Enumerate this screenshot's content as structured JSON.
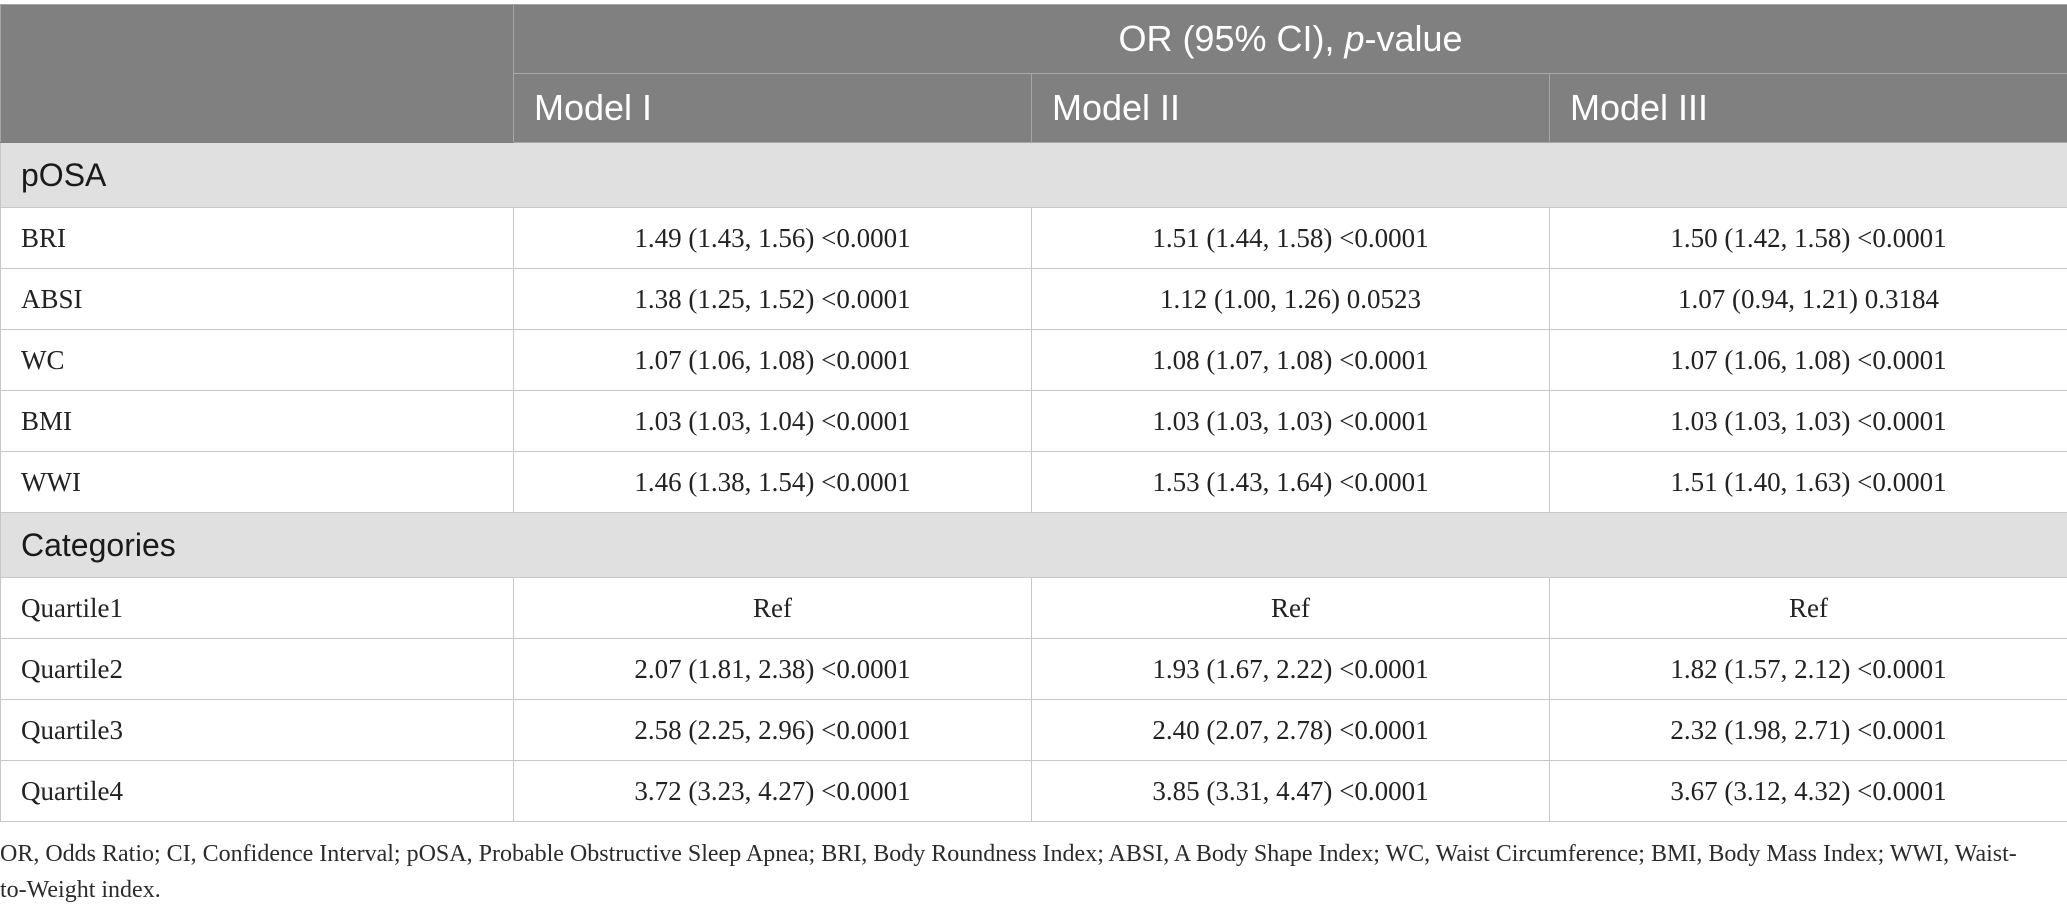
{
  "header": {
    "group_label_pre": "OR (95% CI), ",
    "group_label_italic": "p",
    "group_label_post": "-value",
    "models": [
      "Model I",
      "Model II",
      "Model III"
    ]
  },
  "sections": [
    {
      "title": "pOSA",
      "rows": [
        {
          "label": "BRI",
          "values": [
            "1.49 (1.43, 1.56) <0.0001",
            "1.51 (1.44, 1.58) <0.0001",
            "1.50 (1.42, 1.58) <0.0001"
          ]
        },
        {
          "label": "ABSI",
          "values": [
            "1.38 (1.25, 1.52) <0.0001",
            "1.12 (1.00, 1.26) 0.0523",
            "1.07 (0.94, 1.21) 0.3184"
          ]
        },
        {
          "label": "WC",
          "values": [
            "1.07 (1.06, 1.08) <0.0001",
            "1.08 (1.07, 1.08) <0.0001",
            "1.07 (1.06, 1.08) <0.0001"
          ]
        },
        {
          "label": "BMI",
          "values": [
            "1.03 (1.03, 1.04) <0.0001",
            "1.03 (1.03, 1.03) <0.0001",
            "1.03 (1.03, 1.03) <0.0001"
          ]
        },
        {
          "label": "WWI",
          "values": [
            "1.46 (1.38, 1.54) <0.0001",
            "1.53 (1.43, 1.64) <0.0001",
            "1.51 (1.40, 1.63) <0.0001"
          ]
        }
      ]
    },
    {
      "title": "Categories",
      "rows": [
        {
          "label": "Quartile1",
          "values": [
            "Ref",
            "Ref",
            "Ref"
          ]
        },
        {
          "label": "Quartile2",
          "values": [
            "2.07 (1.81, 2.38) <0.0001",
            "1.93 (1.67, 2.22) <0.0001",
            "1.82 (1.57, 2.12) <0.0001"
          ]
        },
        {
          "label": "Quartile3",
          "values": [
            "2.58 (2.25, 2.96) <0.0001",
            "2.40 (2.07, 2.78) <0.0001",
            "2.32 (1.98, 2.71) <0.0001"
          ]
        },
        {
          "label": "Quartile4",
          "values": [
            "3.72 (3.23, 4.27) <0.0001",
            "3.85 (3.31, 4.47) <0.0001",
            "3.67 (3.12, 4.32) <0.0001"
          ]
        }
      ]
    }
  ],
  "footnote": "OR, Odds Ratio; CI, Confidence Interval; pOSA, Probable Obstructive Sleep Apnea; BRI, Body Roundness Index; ABSI, A Body Shape Index; WC, Waist Circumference; BMI, Body Mass Index; WWI, Waist-to-Weight index."
}
